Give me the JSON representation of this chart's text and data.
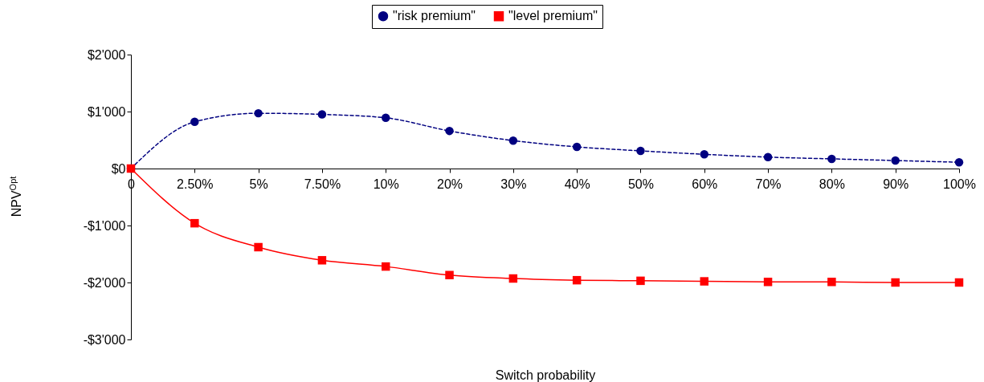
{
  "chart_data": {
    "type": "line",
    "xlabel": "Switch probability",
    "ylabel": "NPV$^{Opt}$",
    "categories": [
      "0",
      "2.50%",
      "5%",
      "7.50%",
      "10%",
      "20%",
      "30%",
      "40%",
      "50%",
      "60%",
      "70%",
      "80%",
      "90%",
      "100%"
    ],
    "series": [
      {
        "name": "\"risk premium\"",
        "color": "#000080",
        "marker": "circle",
        "line_style": "dashed",
        "values": [
          0,
          820,
          970,
          950,
          890,
          660,
          490,
          380,
          310,
          250,
          200,
          170,
          140,
          110
        ]
      },
      {
        "name": "\"level premium\"",
        "color": "#ff0000",
        "marker": "square",
        "line_style": "solid",
        "values": [
          0,
          -960,
          -1380,
          -1610,
          -1720,
          -1870,
          -1930,
          -1960,
          -1970,
          -1980,
          -1990,
          -1990,
          -2000,
          -2000
        ]
      }
    ],
    "ylim": [
      -3000,
      2000
    ],
    "yticks": [
      {
        "value": -3000,
        "label": "-$3'000"
      },
      {
        "value": -2000,
        "label": "-$2'000"
      },
      {
        "value": -1000,
        "label": "-$1'000"
      },
      {
        "value": 0,
        "label": "$0"
      },
      {
        "value": 1000,
        "label": "$1'000"
      },
      {
        "value": 2000,
        "label": "$2'000"
      }
    ],
    "grid": false,
    "legend": "top"
  }
}
